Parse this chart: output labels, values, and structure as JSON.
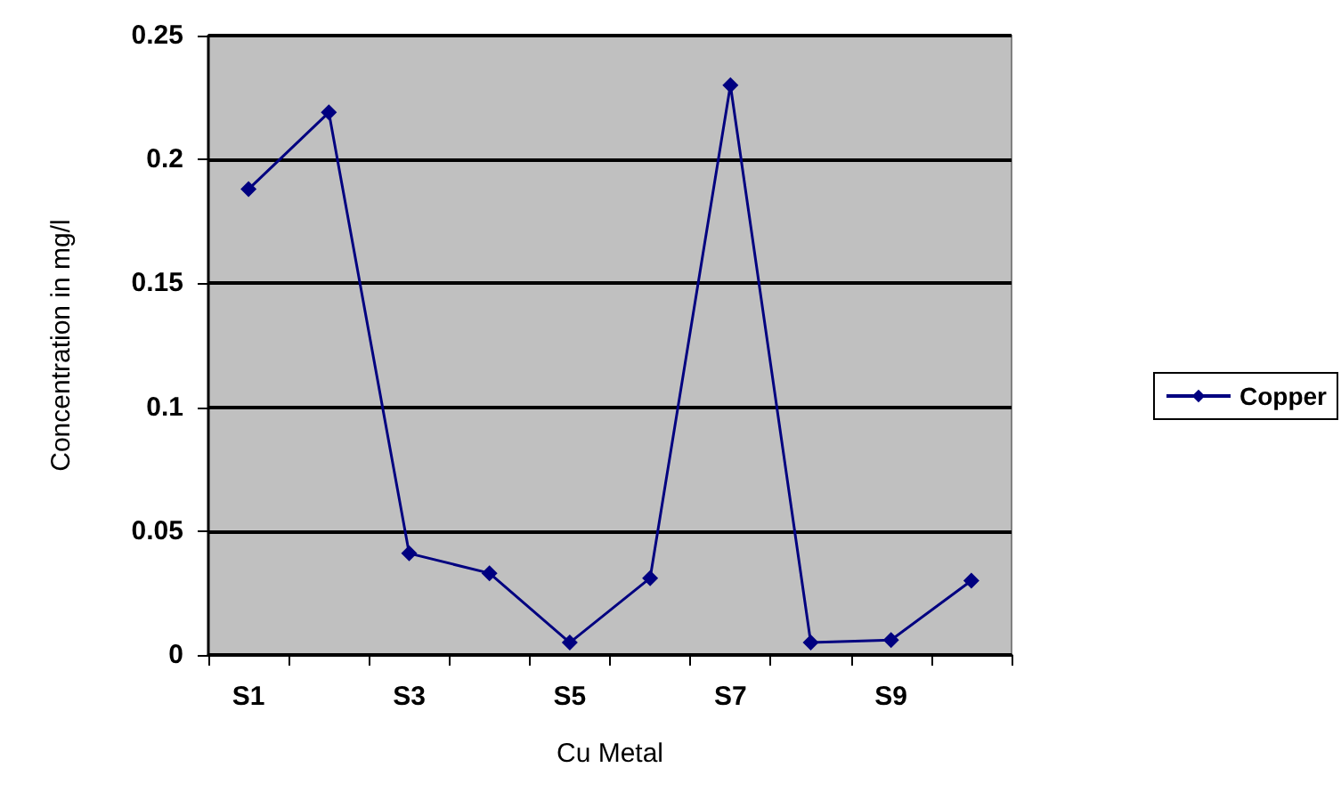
{
  "chart_data": {
    "type": "line",
    "xlabel": "Cu Metal",
    "ylabel": "Concentration in mg/l",
    "categories": [
      "S1",
      null,
      "S3",
      null,
      "S5",
      null,
      "S7",
      null,
      "S9",
      null
    ],
    "series": [
      {
        "name": "Copper",
        "color": "#000080",
        "values": [
          0.188,
          0.219,
          0.041,
          0.033,
          0.005,
          0.031,
          0.23,
          0.005,
          0.006,
          0.03
        ]
      }
    ],
    "ylim": [
      0,
      0.25
    ],
    "yticks": [
      0,
      0.05,
      0.1,
      0.15,
      0.2,
      0.25
    ],
    "grid": "y",
    "legend": "right",
    "marker": "diamond",
    "line_style": "solid"
  }
}
